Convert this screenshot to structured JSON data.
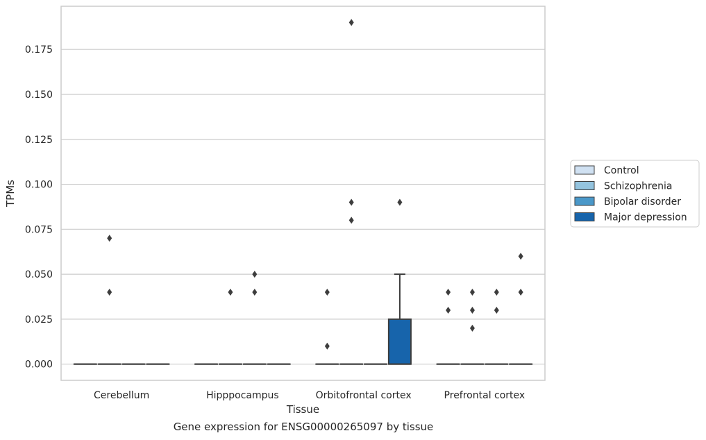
{
  "chart_data": {
    "type": "boxplot",
    "xlabel": "Tissue",
    "ylabel": "TPMs",
    "caption": "Gene expression for ENSG00000265097 by tissue",
    "categories": [
      "Cerebellum",
      "Hipppocampus",
      "Orbitofrontal cortex",
      "Prefrontal cortex"
    ],
    "ylim": [
      -0.009,
      0.199
    ],
    "yticks": [
      0.0,
      0.025,
      0.05,
      0.075,
      0.1,
      0.125,
      0.15,
      0.175
    ],
    "ytick_labels": [
      "0.000",
      "0.025",
      "0.050",
      "0.075",
      "0.100",
      "0.125",
      "0.150",
      "0.175"
    ],
    "grid": "horizontal",
    "legend_position": "right",
    "series": [
      {
        "name": "Control",
        "color": "#d0e1f2",
        "boxes": [
          {
            "q1": 0,
            "median": 0,
            "q3": 0,
            "whisker_low": 0,
            "whisker_high": 0,
            "outliers": []
          },
          {
            "q1": 0,
            "median": 0,
            "q3": 0,
            "whisker_low": 0,
            "whisker_high": 0,
            "outliers": []
          },
          {
            "q1": 0,
            "median": 0,
            "q3": 0,
            "whisker_low": 0,
            "whisker_high": 0,
            "outliers": [
              0.04,
              0.01
            ]
          },
          {
            "q1": 0,
            "median": 0,
            "q3": 0,
            "whisker_low": 0,
            "whisker_high": 0,
            "outliers": [
              0.04,
              0.03
            ]
          }
        ]
      },
      {
        "name": "Schizophrenia",
        "color": "#94c4df",
        "boxes": [
          {
            "q1": 0,
            "median": 0,
            "q3": 0,
            "whisker_low": 0,
            "whisker_high": 0,
            "outliers": [
              0.07,
              0.04
            ]
          },
          {
            "q1": 0,
            "median": 0,
            "q3": 0,
            "whisker_low": 0,
            "whisker_high": 0,
            "outliers": [
              0.04
            ]
          },
          {
            "q1": 0,
            "median": 0,
            "q3": 0,
            "whisker_low": 0,
            "whisker_high": 0,
            "outliers": [
              0.19,
              0.09,
              0.08
            ]
          },
          {
            "q1": 0,
            "median": 0,
            "q3": 0,
            "whisker_low": 0,
            "whisker_high": 0,
            "outliers": [
              0.04,
              0.03,
              0.02
            ]
          }
        ]
      },
      {
        "name": "Bipolar disorder",
        "color": "#4a98c9",
        "boxes": [
          {
            "q1": 0,
            "median": 0,
            "q3": 0,
            "whisker_low": 0,
            "whisker_high": 0,
            "outliers": []
          },
          {
            "q1": 0,
            "median": 0,
            "q3": 0,
            "whisker_low": 0,
            "whisker_high": 0,
            "outliers": [
              0.05,
              0.04
            ]
          },
          {
            "q1": 0,
            "median": 0,
            "q3": 0,
            "whisker_low": 0,
            "whisker_high": 0,
            "outliers": []
          },
          {
            "q1": 0,
            "median": 0,
            "q3": 0,
            "whisker_low": 0,
            "whisker_high": 0,
            "outliers": [
              0.04,
              0.03
            ]
          }
        ]
      },
      {
        "name": "Major depression",
        "color": "#1764ab",
        "boxes": [
          {
            "q1": 0,
            "median": 0,
            "q3": 0,
            "whisker_low": 0,
            "whisker_high": 0,
            "outliers": []
          },
          {
            "q1": 0,
            "median": 0,
            "q3": 0,
            "whisker_low": 0,
            "whisker_high": 0,
            "outliers": []
          },
          {
            "q1": 0,
            "median": 0,
            "q3": 0.025,
            "whisker_low": 0,
            "whisker_high": 0.05,
            "outliers": [
              0.09
            ]
          },
          {
            "q1": 0,
            "median": 0,
            "q3": 0,
            "whisker_low": 0,
            "whisker_high": 0,
            "outliers": [
              0.06,
              0.04
            ]
          }
        ]
      }
    ]
  }
}
